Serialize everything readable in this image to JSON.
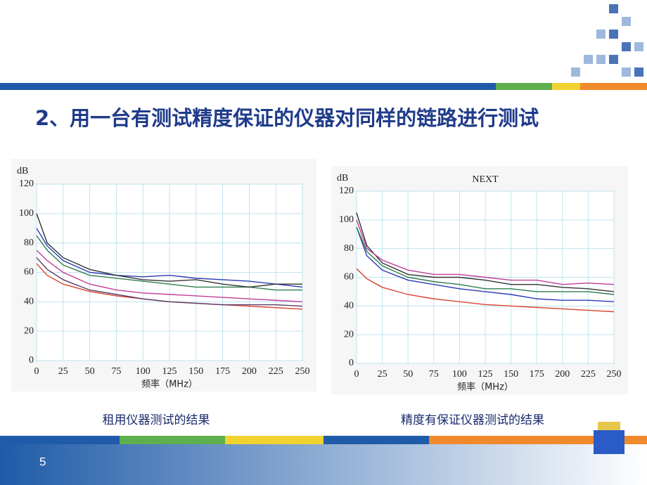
{
  "header": {
    "title": "2、用一台有测试精度保证的仪器对同样的链路进行测试"
  },
  "chart_data": [
    {
      "type": "line",
      "ylabel": "dB",
      "xlabel": "频率（MHz）",
      "caption": "租用仪器测试的结果",
      "x": [
        0,
        10,
        25,
        50,
        75,
        100,
        125,
        150,
        175,
        200,
        225,
        250
      ],
      "series": [
        {
          "color": "#d9442e",
          "values": [
            66,
            58,
            52,
            47,
            44,
            42,
            40,
            39,
            38,
            37,
            36,
            35
          ]
        },
        {
          "color": "#c23c9a",
          "values": [
            75,
            68,
            60,
            52,
            48,
            46,
            45,
            44,
            43,
            42,
            41,
            40
          ]
        },
        {
          "color": "#5a3a6a",
          "values": [
            70,
            62,
            55,
            48,
            45,
            42,
            40,
            39,
            38,
            38,
            38,
            37
          ]
        },
        {
          "color": "#2e7d4f",
          "values": [
            85,
            75,
            65,
            58,
            56,
            54,
            52,
            50,
            50,
            50,
            48,
            48
          ]
        },
        {
          "color": "#2b3bb5",
          "values": [
            90,
            78,
            68,
            60,
            58,
            57,
            58,
            56,
            55,
            54,
            52,
            50
          ]
        },
        {
          "color": "#333333",
          "values": [
            100,
            80,
            70,
            62,
            58,
            55,
            54,
            55,
            52,
            50,
            52,
            52
          ]
        }
      ],
      "xlim": [
        0,
        250
      ],
      "ylim": [
        0,
        120
      ],
      "xticks": [
        0,
        25,
        50,
        75,
        100,
        125,
        150,
        175,
        200,
        225,
        250
      ],
      "yticks": [
        0,
        20,
        40,
        60,
        80,
        100,
        120
      ],
      "grid": true
    },
    {
      "type": "line",
      "title": "NEXT",
      "ylabel": "dB",
      "xlabel": "频率（MHz）",
      "caption": "精度有保证仪器测试的结果",
      "x": [
        0,
        10,
        25,
        50,
        75,
        100,
        125,
        150,
        175,
        200,
        225,
        250
      ],
      "series": [
        {
          "color": "#d9442e",
          "values": [
            66,
            59,
            53,
            48,
            45,
            43,
            41,
            40,
            39,
            38,
            37,
            36
          ]
        },
        {
          "color": "#2b3bb5",
          "values": [
            95,
            75,
            65,
            58,
            55,
            52,
            50,
            48,
            45,
            44,
            44,
            43
          ]
        },
        {
          "color": "#2e7d4f",
          "values": [
            95,
            78,
            68,
            60,
            57,
            55,
            52,
            52,
            50,
            50,
            50,
            48
          ]
        },
        {
          "color": "#333333",
          "values": [
            105,
            82,
            70,
            62,
            60,
            60,
            58,
            55,
            55,
            53,
            52,
            50
          ]
        },
        {
          "color": "#c23c9a",
          "values": [
            100,
            80,
            72,
            65,
            62,
            62,
            60,
            58,
            58,
            55,
            56,
            55
          ]
        }
      ],
      "xlim": [
        0,
        250
      ],
      "ylim": [
        0,
        120
      ],
      "xticks": [
        0,
        25,
        50,
        75,
        100,
        125,
        150,
        175,
        200,
        225,
        250
      ],
      "yticks": [
        0,
        20,
        40,
        60,
        80,
        100,
        120
      ],
      "grid": true
    }
  ],
  "footer": {
    "page_number": "5"
  }
}
